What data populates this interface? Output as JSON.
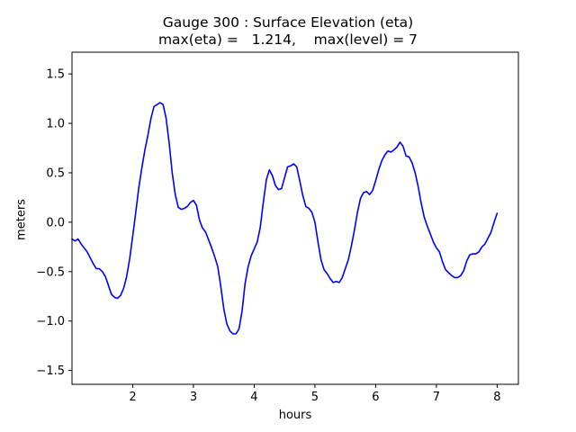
{
  "chart_data": {
    "type": "line",
    "title": "Gauge 300 : Surface Elevation (eta)",
    "subtitle": "max(eta) =   1.214,    max(level) = 7",
    "xlabel": "hours",
    "ylabel": "meters",
    "xlim": [
      1.0,
      8.35
    ],
    "ylim": [
      -1.64,
      1.72
    ],
    "xticks": [
      2,
      3,
      4,
      5,
      6,
      7,
      8
    ],
    "xtick_labels": [
      "2",
      "3",
      "4",
      "5",
      "6",
      "7",
      "8"
    ],
    "yticks": [
      -1.5,
      -1.0,
      -0.5,
      0.0,
      0.5,
      1.0,
      1.5
    ],
    "ytick_labels": [
      "−1.5",
      "−1.0",
      "−0.5",
      "0.0",
      "0.5",
      "1.0",
      "1.5"
    ],
    "grid": false,
    "series": [
      {
        "name": "eta",
        "color": "#0000ff",
        "points": [
          [
            1.0,
            -0.17
          ],
          [
            1.05,
            -0.19
          ],
          [
            1.1,
            -0.17
          ],
          [
            1.15,
            -0.22
          ],
          [
            1.2,
            -0.26
          ],
          [
            1.25,
            -0.3
          ],
          [
            1.3,
            -0.36
          ],
          [
            1.35,
            -0.42
          ],
          [
            1.4,
            -0.47
          ],
          [
            1.45,
            -0.47
          ],
          [
            1.5,
            -0.5
          ],
          [
            1.55,
            -0.55
          ],
          [
            1.6,
            -0.64
          ],
          [
            1.65,
            -0.73
          ],
          [
            1.7,
            -0.76
          ],
          [
            1.75,
            -0.77
          ],
          [
            1.8,
            -0.74
          ],
          [
            1.85,
            -0.67
          ],
          [
            1.9,
            -0.55
          ],
          [
            1.95,
            -0.37
          ],
          [
            2.0,
            -0.14
          ],
          [
            2.05,
            0.1
          ],
          [
            2.1,
            0.35
          ],
          [
            2.15,
            0.55
          ],
          [
            2.2,
            0.73
          ],
          [
            2.25,
            0.88
          ],
          [
            2.3,
            1.05
          ],
          [
            2.35,
            1.17
          ],
          [
            2.4,
            1.19
          ],
          [
            2.45,
            1.21
          ],
          [
            2.5,
            1.19
          ],
          [
            2.55,
            1.05
          ],
          [
            2.6,
            0.8
          ],
          [
            2.65,
            0.5
          ],
          [
            2.7,
            0.28
          ],
          [
            2.75,
            0.15
          ],
          [
            2.8,
            0.13
          ],
          [
            2.85,
            0.14
          ],
          [
            2.9,
            0.16
          ],
          [
            2.95,
            0.2
          ],
          [
            3.0,
            0.22
          ],
          [
            3.05,
            0.17
          ],
          [
            3.1,
            0.02
          ],
          [
            3.15,
            -0.06
          ],
          [
            3.2,
            -0.1
          ],
          [
            3.25,
            -0.18
          ],
          [
            3.3,
            -0.26
          ],
          [
            3.35,
            -0.35
          ],
          [
            3.4,
            -0.45
          ],
          [
            3.45,
            -0.65
          ],
          [
            3.5,
            -0.88
          ],
          [
            3.55,
            -1.03
          ],
          [
            3.6,
            -1.1
          ],
          [
            3.65,
            -1.13
          ],
          [
            3.7,
            -1.13
          ],
          [
            3.75,
            -1.08
          ],
          [
            3.8,
            -0.9
          ],
          [
            3.85,
            -0.62
          ],
          [
            3.9,
            -0.45
          ],
          [
            3.95,
            -0.34
          ],
          [
            4.0,
            -0.27
          ],
          [
            4.05,
            -0.2
          ],
          [
            4.1,
            -0.05
          ],
          [
            4.15,
            0.2
          ],
          [
            4.2,
            0.43
          ],
          [
            4.25,
            0.53
          ],
          [
            4.3,
            0.47
          ],
          [
            4.35,
            0.37
          ],
          [
            4.4,
            0.33
          ],
          [
            4.45,
            0.34
          ],
          [
            4.5,
            0.45
          ],
          [
            4.55,
            0.56
          ],
          [
            4.6,
            0.57
          ],
          [
            4.65,
            0.59
          ],
          [
            4.7,
            0.56
          ],
          [
            4.75,
            0.42
          ],
          [
            4.8,
            0.27
          ],
          [
            4.85,
            0.16
          ],
          [
            4.9,
            0.14
          ],
          [
            4.95,
            0.1
          ],
          [
            5.0,
            0.0
          ],
          [
            5.05,
            -0.2
          ],
          [
            5.1,
            -0.38
          ],
          [
            5.15,
            -0.48
          ],
          [
            5.2,
            -0.52
          ],
          [
            5.25,
            -0.57
          ],
          [
            5.3,
            -0.61
          ],
          [
            5.35,
            -0.6
          ],
          [
            5.4,
            -0.61
          ],
          [
            5.45,
            -0.56
          ],
          [
            5.5,
            -0.47
          ],
          [
            5.55,
            -0.38
          ],
          [
            5.6,
            -0.24
          ],
          [
            5.65,
            -0.08
          ],
          [
            5.7,
            0.1
          ],
          [
            5.75,
            0.24
          ],
          [
            5.8,
            0.3
          ],
          [
            5.85,
            0.31
          ],
          [
            5.9,
            0.28
          ],
          [
            5.95,
            0.32
          ],
          [
            6.0,
            0.42
          ],
          [
            6.05,
            0.53
          ],
          [
            6.1,
            0.62
          ],
          [
            6.15,
            0.68
          ],
          [
            6.2,
            0.72
          ],
          [
            6.25,
            0.71
          ],
          [
            6.3,
            0.73
          ],
          [
            6.35,
            0.76
          ],
          [
            6.4,
            0.81
          ],
          [
            6.45,
            0.77
          ],
          [
            6.5,
            0.67
          ],
          [
            6.55,
            0.66
          ],
          [
            6.6,
            0.6
          ],
          [
            6.65,
            0.5
          ],
          [
            6.7,
            0.36
          ],
          [
            6.75,
            0.19
          ],
          [
            6.8,
            0.05
          ],
          [
            6.85,
            -0.04
          ],
          [
            6.9,
            -0.12
          ],
          [
            6.95,
            -0.2
          ],
          [
            7.0,
            -0.26
          ],
          [
            7.05,
            -0.3
          ],
          [
            7.1,
            -0.4
          ],
          [
            7.15,
            -0.48
          ],
          [
            7.2,
            -0.51
          ],
          [
            7.25,
            -0.54
          ],
          [
            7.3,
            -0.56
          ],
          [
            7.35,
            -0.56
          ],
          [
            7.4,
            -0.54
          ],
          [
            7.45,
            -0.49
          ],
          [
            7.5,
            -0.39
          ],
          [
            7.55,
            -0.33
          ],
          [
            7.6,
            -0.32
          ],
          [
            7.65,
            -0.32
          ],
          [
            7.7,
            -0.3
          ],
          [
            7.75,
            -0.25
          ],
          [
            7.8,
            -0.22
          ],
          [
            7.85,
            -0.16
          ],
          [
            7.9,
            -0.1
          ],
          [
            7.95,
            0.0
          ],
          [
            8.0,
            0.09
          ]
        ]
      }
    ]
  }
}
